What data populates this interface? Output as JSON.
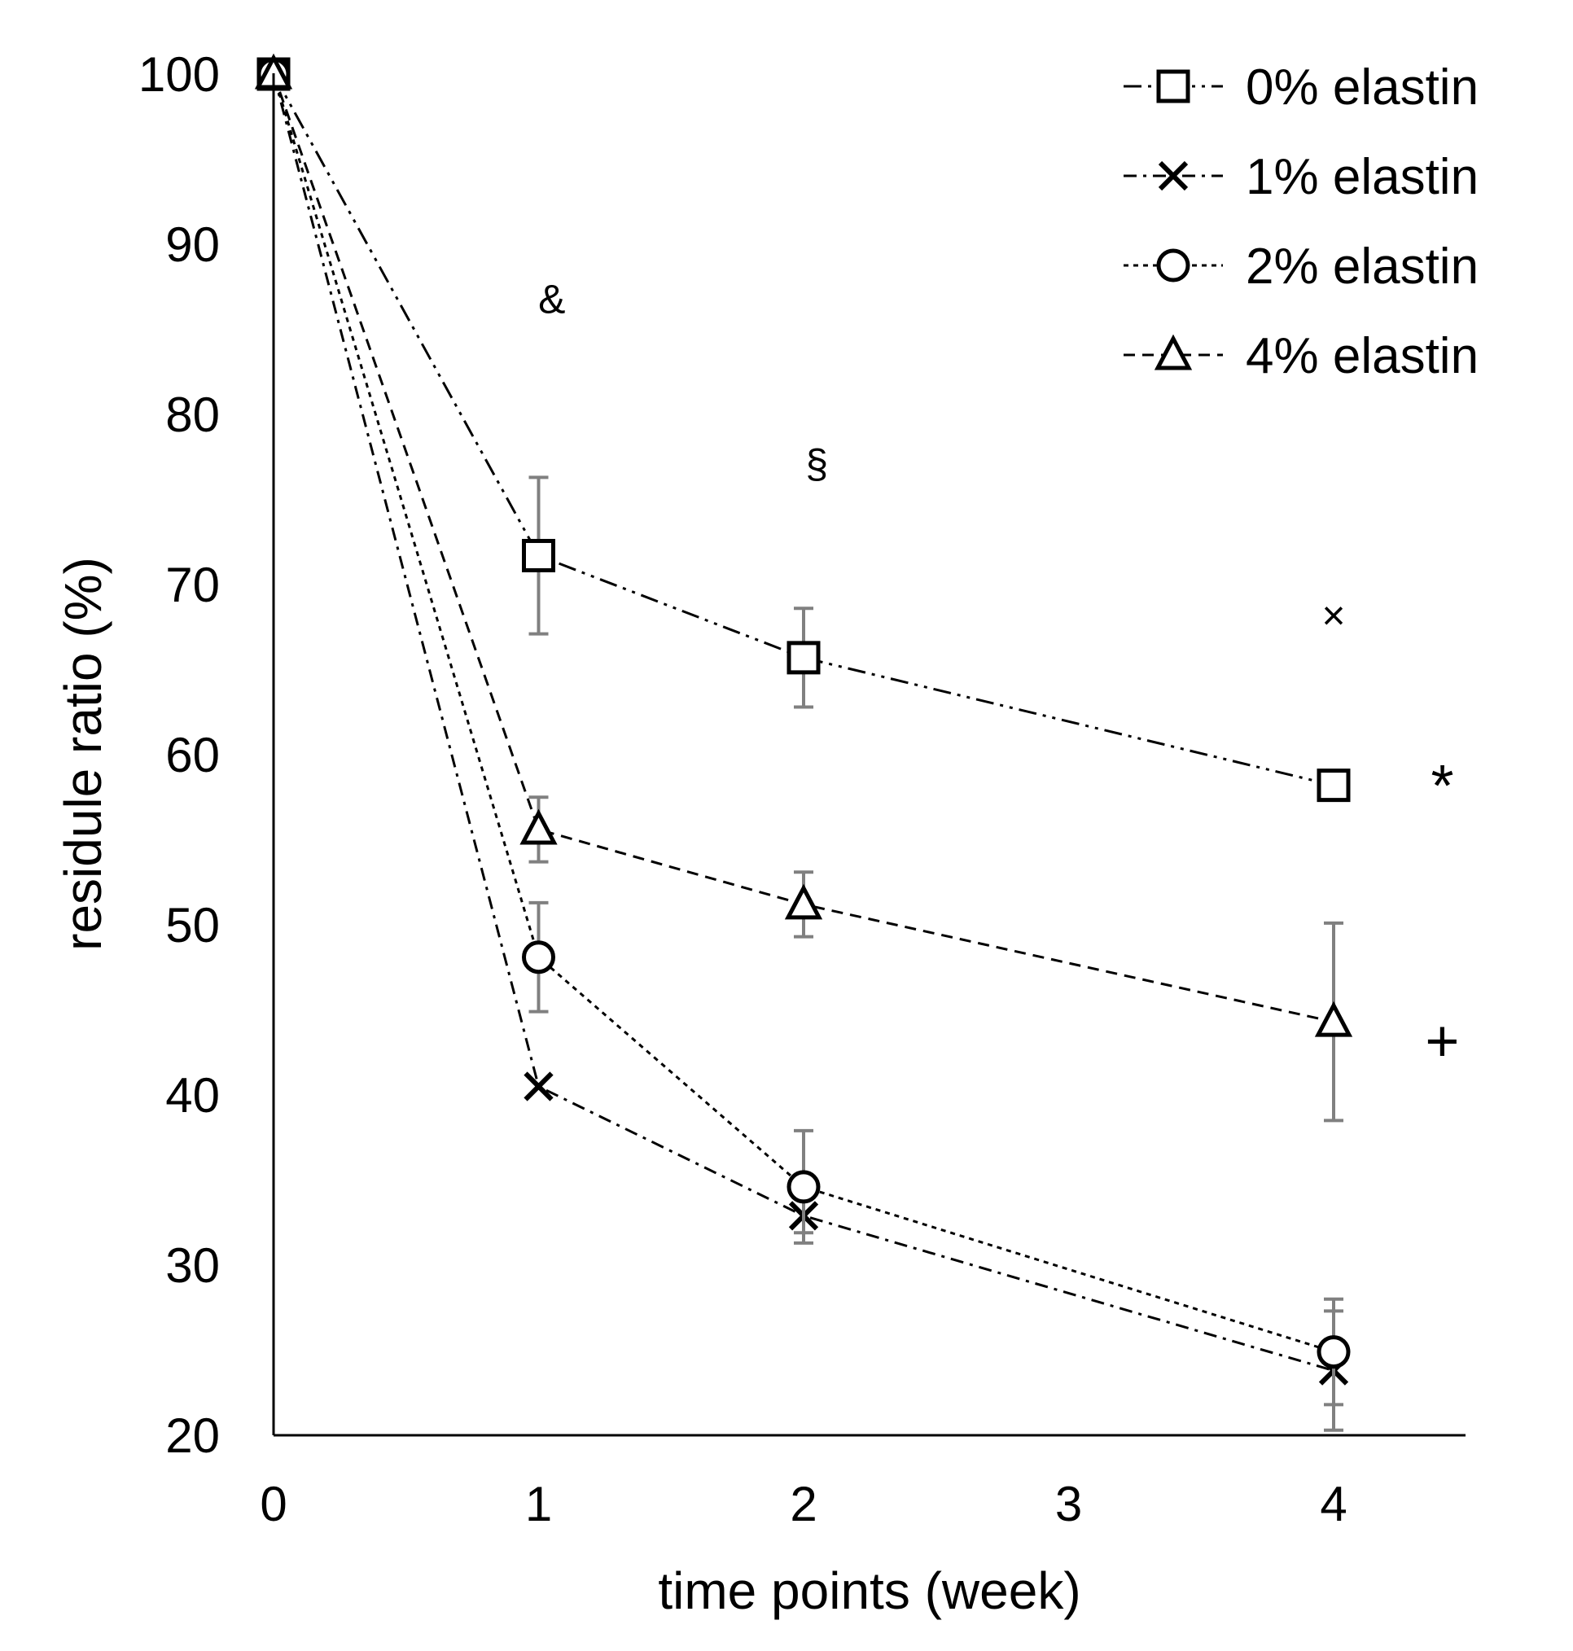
{
  "chart_data": {
    "type": "line",
    "title": "",
    "xlabel": "time points (week)",
    "ylabel": "residule ratio (%)",
    "x": [
      0,
      1,
      2,
      4
    ],
    "xticks": [
      "0",
      "1",
      "2",
      "3",
      "4"
    ],
    "xlim": [
      0,
      4.5
    ],
    "yticks": [
      "20",
      "30",
      "40",
      "50",
      "60",
      "70",
      "80",
      "90",
      "100"
    ],
    "ylim": [
      20,
      100
    ],
    "grid": false,
    "legend_position": "top-right",
    "series": [
      {
        "name": "0% elastin",
        "marker": "square",
        "line_style": "dash-dot-dot",
        "values": [
          100,
          71.7,
          65.7,
          58.2
        ],
        "error": [
          0,
          4.6,
          2.9,
          0
        ]
      },
      {
        "name": "1% elastin",
        "marker": "x",
        "line_style": "dash-dot",
        "values": [
          100,
          40.5,
          32.9,
          23.8
        ],
        "error": [
          0,
          0,
          1.0,
          3.5
        ]
      },
      {
        "name": "2% elastin",
        "marker": "circle",
        "line_style": "dotted",
        "values": [
          100,
          48.1,
          34.6,
          24.9
        ],
        "error": [
          0,
          3.2,
          3.3,
          3.1
        ]
      },
      {
        "name": "4% elastin",
        "marker": "triangle",
        "line_style": "dashed",
        "values": [
          100,
          55.6,
          51.2,
          44.3
        ],
        "error": [
          0,
          1.9,
          1.9,
          5.8
        ]
      }
    ],
    "annotations": [
      {
        "text": "&",
        "x": 1.05,
        "y": 86.6
      },
      {
        "text": "§",
        "x": 2.05,
        "y": 76.9
      },
      {
        "text": "×",
        "x": 4.0,
        "y": 68.0
      },
      {
        "text": "*",
        "x": 4.41,
        "y": 57.9
      },
      {
        "text": "+",
        "x": 4.41,
        "y": 42.9
      }
    ]
  },
  "colors": {
    "line": "#000000",
    "error_bar": "#808080",
    "background": "#ffffff"
  }
}
